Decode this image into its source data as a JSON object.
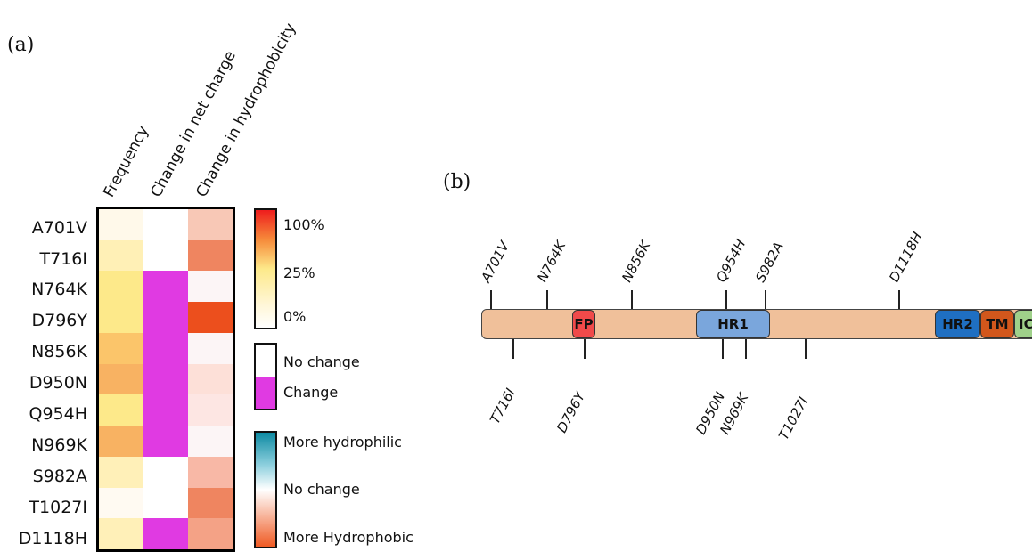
{
  "panel_a_label": "(a)",
  "panel_b_label": "(b)",
  "heatmap": {
    "columns": [
      "Frequency",
      "Change in net charge",
      "Change in hydrophobicity"
    ],
    "rows": [
      {
        "label": "A701V",
        "colors": [
          "#fff9ea",
          "#ffffff",
          "#f8c8b6"
        ]
      },
      {
        "label": "T716I",
        "colors": [
          "#fff0b6",
          "#ffffff",
          "#ef8560"
        ]
      },
      {
        "label": "N764K",
        "colors": [
          "#fde98a",
          "#e03ae2",
          "#fcf5f6"
        ]
      },
      {
        "label": "D796Y",
        "colors": [
          "#fde98a",
          "#e03ae2",
          "#ec4f1d"
        ]
      },
      {
        "label": "N856K",
        "colors": [
          "#fbc56a",
          "#e03ae2",
          "#fcf5f6"
        ]
      },
      {
        "label": "D950N",
        "colors": [
          "#f8b262",
          "#e03ae2",
          "#fde0d8"
        ]
      },
      {
        "label": "Q954H",
        "colors": [
          "#fde98a",
          "#e03ae2",
          "#fde6e3"
        ]
      },
      {
        "label": "N969K",
        "colors": [
          "#f8b262",
          "#e03ae2",
          "#fcf5f6"
        ]
      },
      {
        "label": "S982A",
        "colors": [
          "#fff0b8",
          "#ffffff",
          "#f8b8a6"
        ]
      },
      {
        "label": "T1027I",
        "colors": [
          "#fffaf2",
          "#ffffff",
          "#ef8560"
        ]
      },
      {
        "label": "D1118H",
        "colors": [
          "#fff0b8",
          "#e03ae2",
          "#f4a286"
        ]
      }
    ]
  },
  "legend": {
    "frequency": [
      "100%",
      "25%",
      "0%"
    ],
    "charge": [
      "No change",
      "Change"
    ],
    "hydro": [
      "More hydrophilic",
      "No change",
      "More Hydrophobic"
    ],
    "colors": {
      "charge_change": "#e03ae2",
      "hydrophilic": "#1b8fa8",
      "hydrophobic": "#ef5a23"
    }
  },
  "protein": {
    "domains": [
      {
        "name": "FP",
        "color": "#f04a4a"
      },
      {
        "name": "HR1",
        "color": "#7aa6dc"
      },
      {
        "name": "HR2",
        "color": "#1f6fc2"
      },
      {
        "name": "TM",
        "color": "#d2571c"
      },
      {
        "name": "IC",
        "color": "#9fd08a"
      }
    ],
    "mutations_top": [
      "A701V",
      "N764K",
      "N856K",
      "Q954H",
      "S982A",
      "D1118H"
    ],
    "mutations_bottom": [
      "T716I",
      "D796Y",
      "D950N",
      "N969K",
      "T1027I"
    ]
  }
}
